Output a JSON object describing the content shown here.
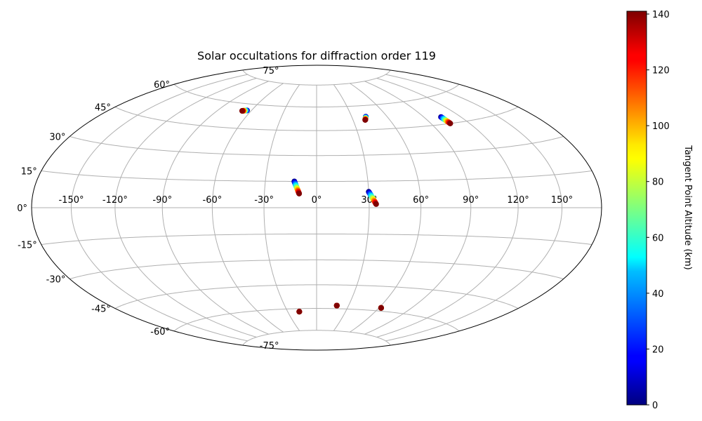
{
  "chart_data": {
    "type": "scatter",
    "projection": "hammer",
    "title": "Solar occultations for diffraction order 119",
    "grid": true,
    "lon_ticks": [
      {
        "value": -150,
        "label": "-150°"
      },
      {
        "value": -120,
        "label": "-120°"
      },
      {
        "value": -90,
        "label": "-90°"
      },
      {
        "value": -60,
        "label": "-60°"
      },
      {
        "value": -30,
        "label": "-30°"
      },
      {
        "value": 0,
        "label": "0°"
      },
      {
        "value": 30,
        "label": "30°"
      },
      {
        "value": 60,
        "label": "60°"
      },
      {
        "value": 90,
        "label": "90°"
      },
      {
        "value": 120,
        "label": "120°"
      },
      {
        "value": 150,
        "label": "150°"
      }
    ],
    "lat_ticks": [
      {
        "value": 75,
        "label": "75°"
      },
      {
        "value": 60,
        "label": "60°"
      },
      {
        "value": 45,
        "label": "45°"
      },
      {
        "value": 30,
        "label": "30°"
      },
      {
        "value": 15,
        "label": "15°"
      },
      {
        "value": 0,
        "label": "0°"
      },
      {
        "value": -15,
        "label": "-15°"
      },
      {
        "value": -30,
        "label": "-30°"
      },
      {
        "value": -45,
        "label": "-45°"
      },
      {
        "value": -60,
        "label": "-60°"
      },
      {
        "value": -75,
        "label": "-75°"
      }
    ],
    "colorbar": {
      "label": "Tangent Point Altitude (km)",
      "colormap": "jet",
      "min": 0,
      "max": 141,
      "ticks": [
        0,
        20,
        40,
        60,
        80,
        100,
        120,
        140
      ]
    },
    "tracks": [
      {
        "lon_start": -64,
        "lat_start": 56,
        "lon_end": -68,
        "lat_end": 55.5
      },
      {
        "lon_start": 42,
        "lat_start": 53,
        "lon_end": 40,
        "lat_end": 51
      },
      {
        "lon_start": 104,
        "lat_start": 49,
        "lon_end": 105,
        "lat_end": 45
      },
      {
        "lon_start": -13,
        "lat_start": 15,
        "lon_end": -10,
        "lat_end": 8
      },
      {
        "lon_start": 30,
        "lat_start": 9,
        "lon_end": 34,
        "lat_end": 2
      },
      {
        "lon_start": -18,
        "lat_start": -62,
        "lon_end": -18,
        "lat_end": -62
      },
      {
        "lon_start": 19,
        "lat_start": -58,
        "lon_end": 19,
        "lat_end": -58
      },
      {
        "lon_start": 62,
        "lat_start": -58,
        "lon_end": 62,
        "lat_end": -58
      }
    ]
  }
}
